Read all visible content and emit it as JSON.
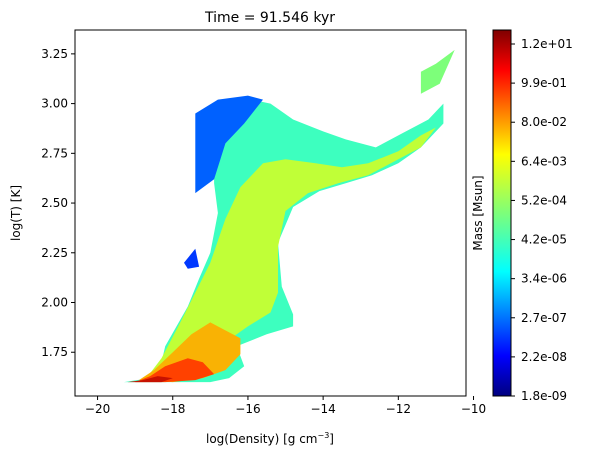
{
  "chart_data": {
    "type": "heatmap",
    "title": "Time = 91.546 kyr",
    "xlabel_main": "log(Density) [g cm",
    "xlabel_exp": "−3",
    "xlabel_close": "]",
    "ylabel": "log(T) [K]",
    "xlim": [
      -20.6,
      -10.2
    ],
    "ylim": [
      1.53,
      3.37
    ],
    "x_ticks": [
      -20,
      -18,
      -16,
      -14,
      -12,
      -10
    ],
    "x_tick_labels": [
      "−20",
      "−18",
      "−16",
      "−14",
      "−12",
      "−10"
    ],
    "y_ticks": [
      1.75,
      2.0,
      2.25,
      2.5,
      2.75,
      3.0,
      3.25
    ],
    "y_tick_labels": [
      "1.75",
      "2.00",
      "2.25",
      "2.50",
      "2.75",
      "3.00",
      "3.25"
    ],
    "colorbar": {
      "label": "Mass [Msun]",
      "colormap": "jet",
      "tick_labels": [
        "1.8e-09",
        "2.2e-08",
        "2.7e-07",
        "3.4e-06",
        "4.2e-05",
        "5.2e-04",
        "6.4e-03",
        "8.0e-02",
        "9.9e-01",
        "1.2e+01"
      ],
      "colors": [
        "#00007f",
        "#0000ff",
        "#0080ff",
        "#19ffe6",
        "#7dff7a",
        "#e6ff12",
        "#ff9a00",
        "#ff1e00",
        "#7f0000"
      ]
    },
    "regions": [
      {
        "level": 0.42,
        "polygon": [
          [
            -19.3,
            1.6
          ],
          [
            -18.6,
            1.62
          ],
          [
            -18.3,
            1.7
          ],
          [
            -18.2,
            1.78
          ],
          [
            -17.6,
            1.98
          ],
          [
            -17.3,
            2.12
          ],
          [
            -17.0,
            2.25
          ],
          [
            -16.8,
            2.45
          ],
          [
            -16.9,
            2.6
          ],
          [
            -16.9,
            2.88
          ],
          [
            -16.5,
            2.9
          ],
          [
            -16.3,
            2.99
          ],
          [
            -15.9,
            3.02
          ],
          [
            -15.4,
            3.0
          ],
          [
            -14.8,
            2.92
          ],
          [
            -14.0,
            2.86
          ],
          [
            -13.4,
            2.82
          ],
          [
            -12.6,
            2.78
          ],
          [
            -11.9,
            2.85
          ],
          [
            -11.2,
            2.92
          ],
          [
            -10.8,
            3.0
          ],
          [
            -10.8,
            2.9
          ],
          [
            -11.4,
            2.78
          ],
          [
            -12.0,
            2.7
          ],
          [
            -12.7,
            2.64
          ],
          [
            -13.4,
            2.6
          ],
          [
            -14.1,
            2.56
          ],
          [
            -14.8,
            2.48
          ],
          [
            -15.2,
            2.3
          ],
          [
            -15.1,
            2.08
          ],
          [
            -14.8,
            1.94
          ],
          [
            -14.8,
            1.88
          ],
          [
            -15.5,
            1.84
          ],
          [
            -16.3,
            1.78
          ],
          [
            -16.1,
            1.68
          ],
          [
            -16.5,
            1.62
          ],
          [
            -17.0,
            1.6
          ],
          [
            -18.6,
            1.6
          ]
        ]
      },
      {
        "level": 0.58,
        "polygon": [
          [
            -18.7,
            1.62
          ],
          [
            -18.3,
            1.72
          ],
          [
            -17.8,
            1.9
          ],
          [
            -17.4,
            2.05
          ],
          [
            -17.0,
            2.2
          ],
          [
            -16.6,
            2.42
          ],
          [
            -16.2,
            2.58
          ],
          [
            -15.6,
            2.7
          ],
          [
            -15.0,
            2.72
          ],
          [
            -14.2,
            2.7
          ],
          [
            -13.5,
            2.68
          ],
          [
            -12.8,
            2.7
          ],
          [
            -12.0,
            2.76
          ],
          [
            -11.4,
            2.84
          ],
          [
            -11.0,
            2.88
          ],
          [
            -11.4,
            2.78
          ],
          [
            -12.0,
            2.72
          ],
          [
            -12.8,
            2.64
          ],
          [
            -13.6,
            2.6
          ],
          [
            -14.4,
            2.55
          ],
          [
            -15.0,
            2.46
          ],
          [
            -15.2,
            2.28
          ],
          [
            -15.2,
            2.05
          ],
          [
            -15.4,
            1.95
          ],
          [
            -16.0,
            1.88
          ],
          [
            -16.6,
            1.8
          ],
          [
            -16.8,
            1.7
          ],
          [
            -17.2,
            1.62
          ]
        ]
      },
      {
        "level": 0.72,
        "polygon": [
          [
            -18.9,
            1.61
          ],
          [
            -18.5,
            1.66
          ],
          [
            -18.0,
            1.75
          ],
          [
            -17.5,
            1.84
          ],
          [
            -17.0,
            1.9
          ],
          [
            -16.6,
            1.86
          ],
          [
            -16.2,
            1.82
          ],
          [
            -16.2,
            1.74
          ],
          [
            -16.6,
            1.66
          ],
          [
            -17.2,
            1.62
          ],
          [
            -18.0,
            1.6
          ]
        ]
      },
      {
        "level": 0.84,
        "polygon": [
          [
            -19.0,
            1.6
          ],
          [
            -18.6,
            1.63
          ],
          [
            -18.2,
            1.68
          ],
          [
            -17.6,
            1.72
          ],
          [
            -17.2,
            1.7
          ],
          [
            -16.9,
            1.64
          ],
          [
            -17.4,
            1.61
          ],
          [
            -18.2,
            1.6
          ]
        ]
      },
      {
        "level": 0.93,
        "polygon": [
          [
            -19.2,
            1.6
          ],
          [
            -18.8,
            1.61
          ],
          [
            -18.4,
            1.63
          ],
          [
            -18.0,
            1.62
          ],
          [
            -18.3,
            1.6
          ]
        ]
      },
      {
        "level": 0.22,
        "polygon": [
          [
            -17.4,
            2.55
          ],
          [
            -17.4,
            2.95
          ],
          [
            -16.8,
            3.02
          ],
          [
            -16.0,
            3.04
          ],
          [
            -15.6,
            3.02
          ],
          [
            -16.1,
            2.9
          ],
          [
            -16.6,
            2.8
          ],
          [
            -16.9,
            2.62
          ]
        ]
      },
      {
        "level": 0.18,
        "polygon": [
          [
            -17.7,
            2.2
          ],
          [
            -17.4,
            2.27
          ],
          [
            -17.3,
            2.18
          ],
          [
            -17.6,
            2.17
          ]
        ]
      },
      {
        "level": 0.5,
        "polygon": [
          [
            -11.4,
            3.16
          ],
          [
            -11.0,
            3.2
          ],
          [
            -10.5,
            3.27
          ],
          [
            -10.9,
            3.1
          ],
          [
            -11.4,
            3.05
          ]
        ]
      }
    ]
  }
}
